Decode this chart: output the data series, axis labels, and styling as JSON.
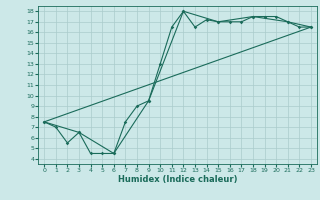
{
  "title": "",
  "xlabel": "Humidex (Indice chaleur)",
  "bg_color": "#cce8e8",
  "line_color": "#1a6b5a",
  "grid_color": "#aacccc",
  "xlim": [
    -0.5,
    23.5
  ],
  "ylim": [
    3.5,
    18.5
  ],
  "xticks": [
    0,
    1,
    2,
    3,
    4,
    5,
    6,
    7,
    8,
    9,
    10,
    11,
    12,
    13,
    14,
    15,
    16,
    17,
    18,
    19,
    20,
    21,
    22,
    23
  ],
  "yticks": [
    4,
    5,
    6,
    7,
    8,
    9,
    10,
    11,
    12,
    13,
    14,
    15,
    16,
    17,
    18
  ],
  "line1_x": [
    0,
    1,
    2,
    3,
    4,
    5,
    6,
    7,
    8,
    9,
    10,
    11,
    12,
    13,
    14,
    15,
    16,
    17,
    18,
    19,
    20,
    21,
    22,
    23
  ],
  "line1_y": [
    7.5,
    7.0,
    5.5,
    6.5,
    4.5,
    4.5,
    4.5,
    7.5,
    9.0,
    9.5,
    13.0,
    16.5,
    18.0,
    16.5,
    17.2,
    17.0,
    17.0,
    17.0,
    17.5,
    17.5,
    17.5,
    17.0,
    16.5,
    16.5
  ],
  "line2_x": [
    0,
    3,
    6,
    9,
    12,
    15,
    18,
    21,
    23
  ],
  "line2_y": [
    7.5,
    6.5,
    4.5,
    9.5,
    18.0,
    17.0,
    17.5,
    17.0,
    16.5
  ],
  "line3_x": [
    0,
    23
  ],
  "line3_y": [
    7.5,
    16.5
  ]
}
